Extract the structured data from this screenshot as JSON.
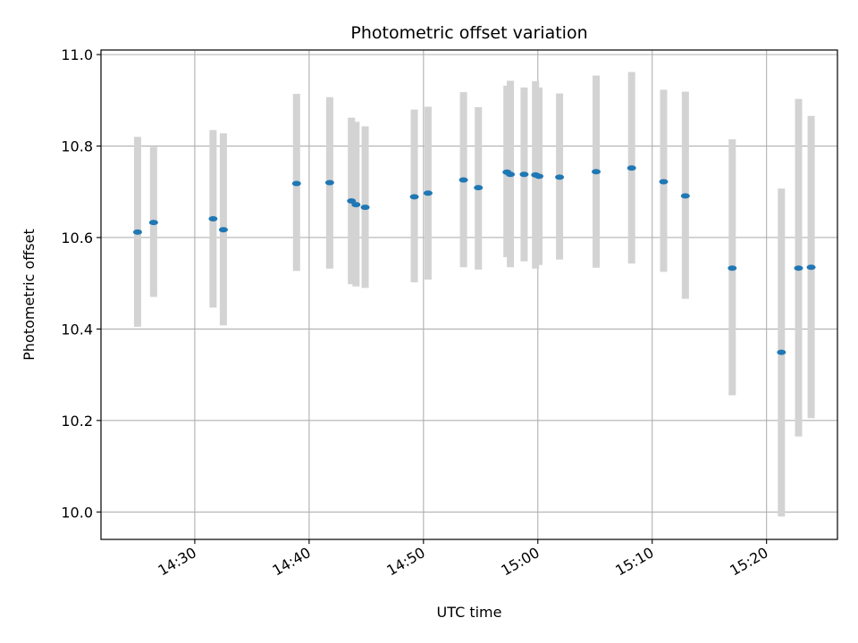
{
  "chart_data": {
    "type": "scatter",
    "title": "Photometric offset variation",
    "xlabel": "UTC time",
    "ylabel": "Photometric offset",
    "grid": true,
    "x_unit": "minutes after 14:00 UTC",
    "xlim": [
      21.8,
      86.2
    ],
    "ylim": [
      9.94,
      11.01
    ],
    "x_ticks": [
      {
        "t": 30,
        "label": "14:30"
      },
      {
        "t": 40,
        "label": "14:40"
      },
      {
        "t": 50,
        "label": "14:50"
      },
      {
        "t": 60,
        "label": "15:00"
      },
      {
        "t": 70,
        "label": "15:10"
      },
      {
        "t": 80,
        "label": "15:20"
      }
    ],
    "y_ticks": [
      {
        "v": 10.0,
        "label": "10.0"
      },
      {
        "v": 10.2,
        "label": "10.2"
      },
      {
        "v": 10.4,
        "label": "10.4"
      },
      {
        "v": 10.6,
        "label": "10.6"
      },
      {
        "v": 10.8,
        "label": "10.8"
      },
      {
        "v": 11.0,
        "label": "11.0"
      }
    ],
    "colors": {
      "point": "#1f77b4",
      "errorbar": "#d3d3d3",
      "grid": "#b0b0b0"
    },
    "series": [
      {
        "points": [
          {
            "t": 25.0,
            "y": 10.612,
            "lo": 10.405,
            "hi": 10.82
          },
          {
            "t": 26.4,
            "y": 10.633,
            "lo": 10.47,
            "hi": 10.798
          },
          {
            "t": 31.6,
            "y": 10.641,
            "lo": 10.447,
            "hi": 10.835
          },
          {
            "t": 32.5,
            "y": 10.617,
            "lo": 10.408,
            "hi": 10.828
          },
          {
            "t": 38.9,
            "y": 10.718,
            "lo": 10.527,
            "hi": 10.914
          },
          {
            "t": 41.8,
            "y": 10.72,
            "lo": 10.532,
            "hi": 10.907
          },
          {
            "t": 43.7,
            "y": 10.68,
            "lo": 10.498,
            "hi": 10.862
          },
          {
            "t": 44.1,
            "y": 10.672,
            "lo": 10.493,
            "hi": 10.853
          },
          {
            "t": 44.9,
            "y": 10.666,
            "lo": 10.49,
            "hi": 10.843
          },
          {
            "t": 49.2,
            "y": 10.689,
            "lo": 10.502,
            "hi": 10.88
          },
          {
            "t": 50.4,
            "y": 10.697,
            "lo": 10.508,
            "hi": 10.886
          },
          {
            "t": 53.5,
            "y": 10.726,
            "lo": 10.535,
            "hi": 10.918
          },
          {
            "t": 54.8,
            "y": 10.709,
            "lo": 10.53,
            "hi": 10.885
          },
          {
            "t": 57.3,
            "y": 10.743,
            "lo": 10.557,
            "hi": 10.932
          },
          {
            "t": 57.6,
            "y": 10.738,
            "lo": 10.535,
            "hi": 10.943
          },
          {
            "t": 58.8,
            "y": 10.738,
            "lo": 10.548,
            "hi": 10.928
          },
          {
            "t": 59.8,
            "y": 10.737,
            "lo": 10.532,
            "hi": 10.942
          },
          {
            "t": 60.1,
            "y": 10.734,
            "lo": 10.54,
            "hi": 10.928
          },
          {
            "t": 61.9,
            "y": 10.732,
            "lo": 10.552,
            "hi": 10.915
          },
          {
            "t": 65.1,
            "y": 10.744,
            "lo": 10.534,
            "hi": 10.954
          },
          {
            "t": 68.2,
            "y": 10.752,
            "lo": 10.543,
            "hi": 10.962
          },
          {
            "t": 71.0,
            "y": 10.722,
            "lo": 10.525,
            "hi": 10.923
          },
          {
            "t": 72.9,
            "y": 10.691,
            "lo": 10.466,
            "hi": 10.919
          },
          {
            "t": 77.0,
            "y": 10.533,
            "lo": 10.255,
            "hi": 10.815
          },
          {
            "t": 81.3,
            "y": 10.349,
            "lo": 9.99,
            "hi": 10.707
          },
          {
            "t": 82.8,
            "y": 10.533,
            "lo": 10.165,
            "hi": 10.903
          },
          {
            "t": 83.9,
            "y": 10.535,
            "lo": 10.205,
            "hi": 10.866
          }
        ]
      }
    ]
  }
}
